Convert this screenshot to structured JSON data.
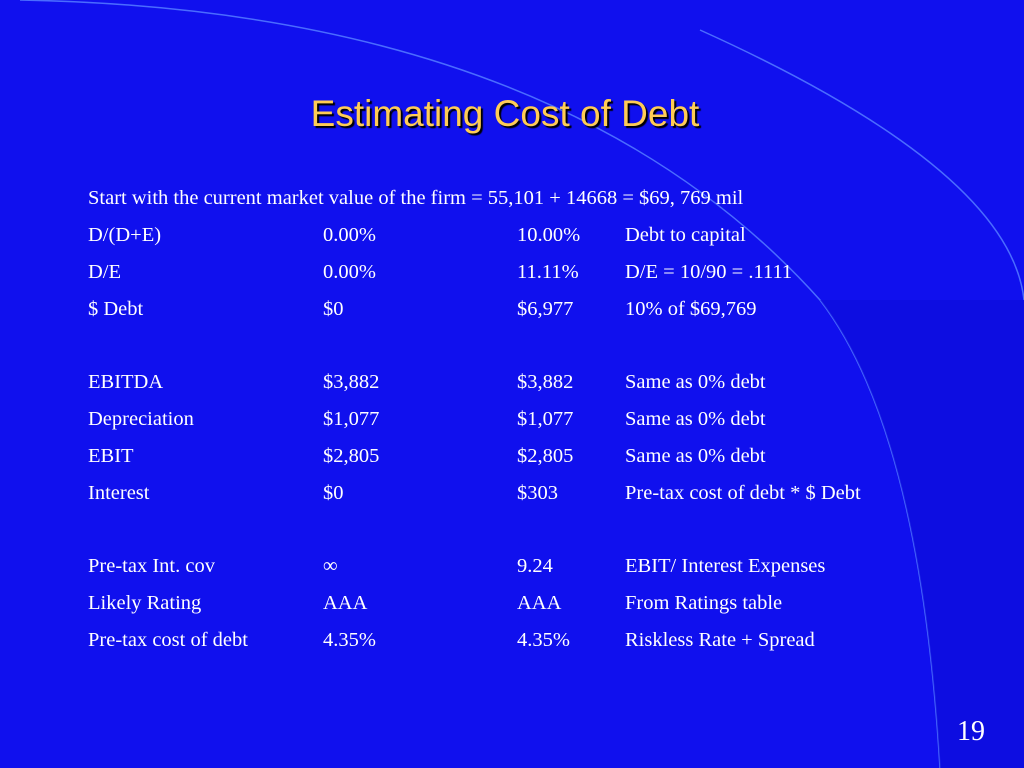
{
  "slide": {
    "title": "Estimating Cost of Debt",
    "intro": "Start with the current market value of the firm = 55,101 + 14668 = $69, 769 mil",
    "page_number": "19",
    "colors": {
      "background": "#1010ee",
      "title": "#ffcc55",
      "text": "#ffffff",
      "arc": "#4a6cff"
    }
  },
  "table": {
    "rows": [
      {
        "label": "D/(D+E)",
        "zero_debt": "0.00%",
        "ten_pct_debt": "10.00%",
        "note": "Debt to capital"
      },
      {
        "label": "D/E",
        "zero_debt": "0.00%",
        "ten_pct_debt": "11.11%",
        "note": "D/E = 10/90 = .1111"
      },
      {
        "label": "$ Debt",
        "zero_debt": "$0",
        "ten_pct_debt": "$6,977",
        "note": "10% of $69,769"
      },
      {
        "label": "",
        "zero_debt": "",
        "ten_pct_debt": "",
        "note": ""
      },
      {
        "label": "EBITDA",
        "zero_debt": "$3,882",
        "ten_pct_debt": "$3,882",
        "note": "Same as 0% debt"
      },
      {
        "label": "Depreciation",
        "zero_debt": "$1,077",
        "ten_pct_debt": "$1,077",
        "note": "Same as 0% debt"
      },
      {
        "label": "EBIT",
        "zero_debt": "$2,805",
        "ten_pct_debt": "$2,805",
        "note": "Same as 0% debt"
      },
      {
        "label": "Interest",
        "zero_debt": "$0",
        "ten_pct_debt": "$303",
        "note": "Pre-tax cost of debt * $ Debt"
      },
      {
        "label": "",
        "zero_debt": "",
        "ten_pct_debt": "",
        "note": ""
      },
      {
        "label": "Pre-tax Int. cov",
        "zero_debt": "∞",
        "ten_pct_debt": "9.24",
        "note": "EBIT/ Interest Expenses"
      },
      {
        "label": "Likely Rating",
        "zero_debt": "AAA",
        "ten_pct_debt": "AAA",
        "note": "From Ratings table"
      },
      {
        "label": "Pre-tax cost of debt",
        "zero_debt": "4.35%",
        "ten_pct_debt": "4.35%",
        "note": "Riskless Rate + Spread"
      }
    ]
  }
}
